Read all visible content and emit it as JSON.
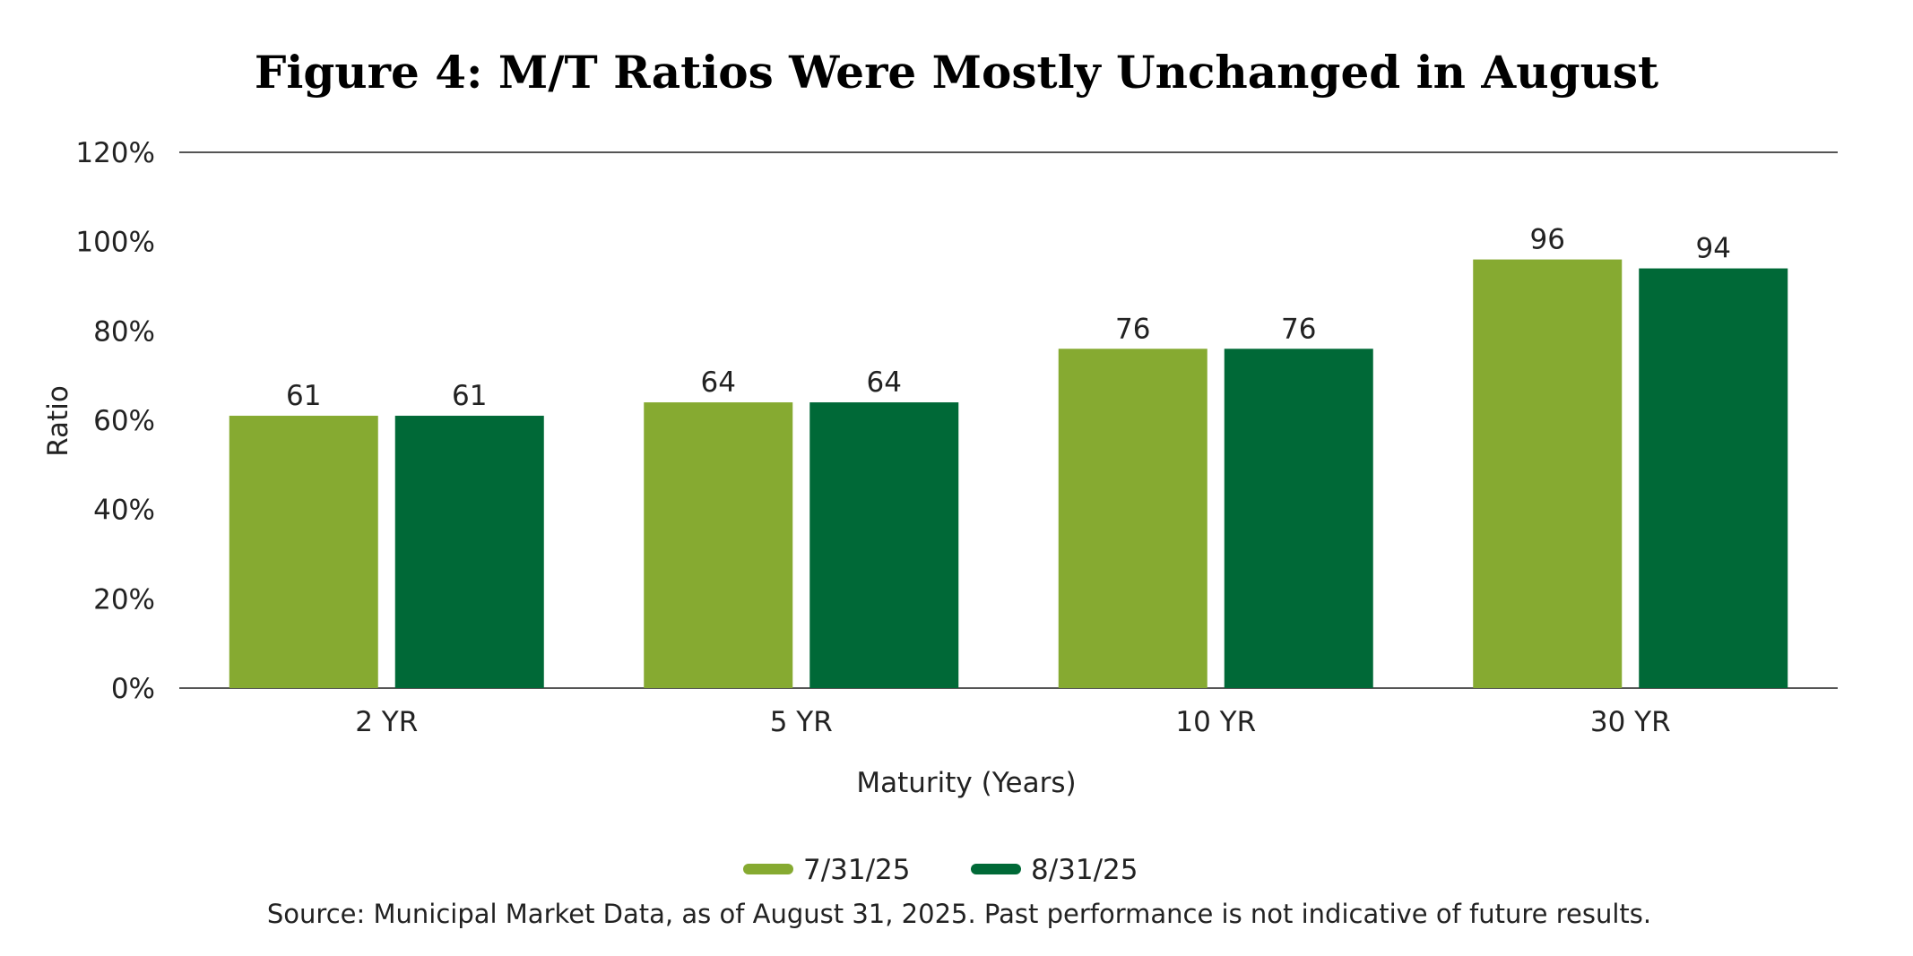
{
  "chart_data": {
    "type": "bar",
    "title": "Figure 4: M/T Ratios Were Mostly Unchanged in August",
    "xlabel": "Maturity (Years)",
    "ylabel": "Ratio",
    "categories": [
      "2 YR",
      "5 YR",
      "10 YR",
      "30 YR"
    ],
    "series": [
      {
        "name": "7/31/25",
        "color": "#86AA31",
        "values": [
          61,
          64,
          76,
          96
        ]
      },
      {
        "name": "8/31/25",
        "color": "#006937",
        "values": [
          61,
          64,
          76,
          94
        ]
      }
    ],
    "ylim": [
      0,
      120
    ],
    "yticks": [
      0,
      20,
      40,
      60,
      80,
      100,
      120
    ],
    "ytick_suffix": "%",
    "grid": false,
    "legend_position": "bottom-center",
    "source": "Source: Municipal Market Data, as of August 31, 2025. Past performance is not indicative of future results."
  }
}
